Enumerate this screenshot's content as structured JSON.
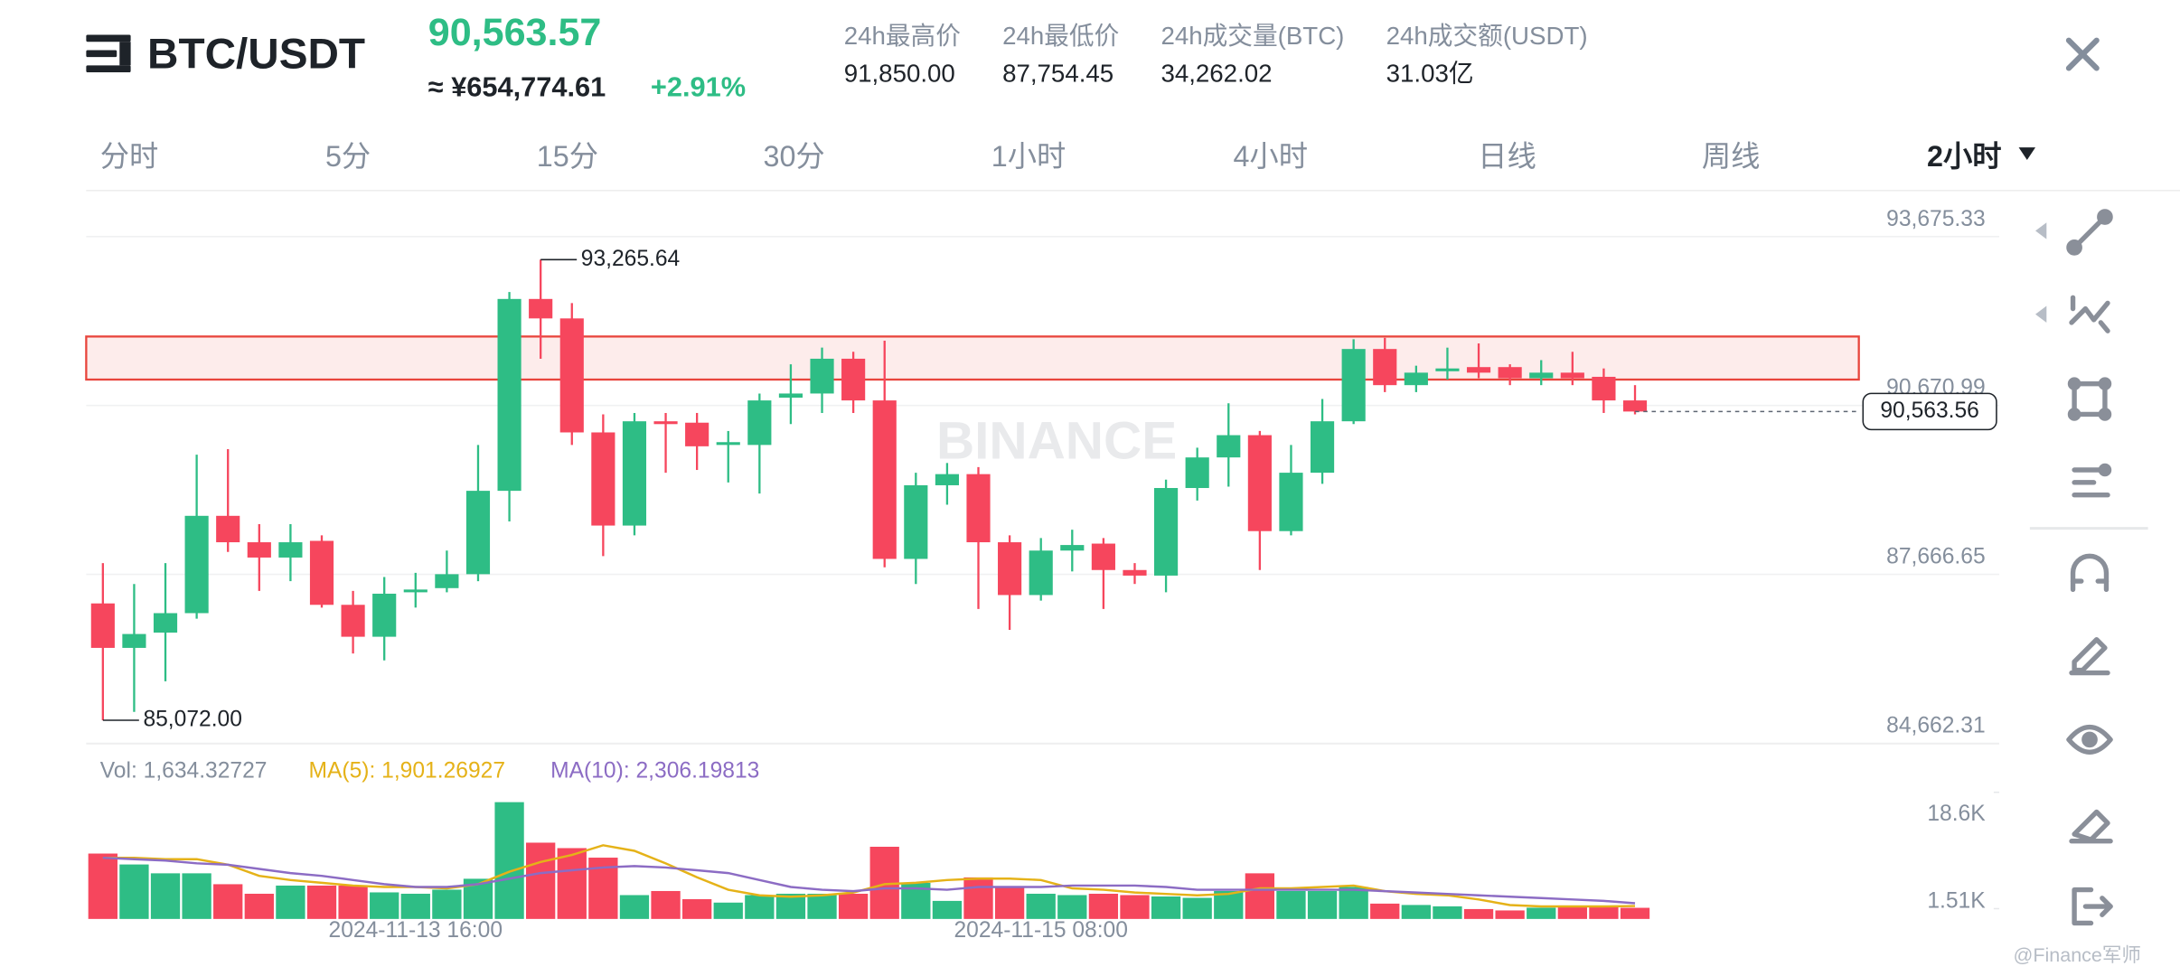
{
  "header": {
    "pair": "BTC/USDT",
    "price": "90,563.57",
    "price_cny": "≈ ¥654,774.61",
    "change": "+2.91%",
    "stats": [
      {
        "label": "24h最高价",
        "value": "91,850.00"
      },
      {
        "label": "24h最低价",
        "value": "87,754.45"
      },
      {
        "label": "24h成交量(BTC)",
        "value": "34,262.02"
      },
      {
        "label": "24h成交额(USDT)",
        "value": "31.03亿"
      }
    ]
  },
  "tabs": [
    "分时",
    "5分",
    "15分",
    "30分",
    "1小时",
    "4小时",
    "日线",
    "周线"
  ],
  "active_tab": "2小时",
  "watermark": "BINANCE",
  "footer": "@Finance军师",
  "chart_data": {
    "type": "candlestick",
    "categories": [
      null,
      null,
      null,
      null,
      null,
      null,
      null,
      null,
      null,
      null,
      "2024-11-13 16:00",
      null,
      null,
      null,
      null,
      null,
      null,
      null,
      null,
      null,
      null,
      null,
      null,
      null,
      null,
      null,
      null,
      null,
      null,
      null,
      "2024-11-15 08:00",
      null,
      null,
      null,
      null,
      null,
      null,
      null,
      null,
      null,
      null,
      null,
      null,
      null,
      null,
      null,
      null,
      null,
      null,
      null
    ],
    "open": [
      87150,
      86359,
      86631,
      86977,
      88708,
      88238,
      87966,
      88263,
      87125,
      86557,
      87348,
      87422,
      87670,
      89153,
      92566,
      92220,
      90192,
      88535,
      90390,
      90365,
      89969,
      89969,
      90810,
      90884,
      91503,
      90761,
      87942,
      89252,
      89450,
      88238,
      87299,
      88090,
      88214,
      87744,
      87645,
      89203,
      89747,
      90143,
      88436,
      89475,
      90390,
      91676,
      91033,
      91280,
      91354,
      91354,
      91156,
      91255,
      91181,
      90761
    ],
    "high": [
      87867,
      87496,
      87867,
      89796,
      89895,
      88560,
      88560,
      88362,
      87373,
      87620,
      87694,
      88090,
      89969,
      92690,
      93265.64,
      92492,
      90513,
      90538,
      90538,
      90538,
      90217,
      90884,
      91404,
      91700,
      91626,
      91824,
      89475,
      89648,
      89574,
      88362,
      88312,
      88461,
      88312,
      87867,
      89351,
      89920,
      90711,
      90217,
      89969,
      90786,
      91849,
      91874,
      91379,
      91700,
      91775,
      91404,
      91478,
      91626,
      91330,
      91033
    ],
    "low": [
      85072,
      85221,
      85765,
      86878,
      88065,
      87373,
      87546,
      87076,
      86260,
      86136,
      87076,
      87348,
      87546,
      88609,
      91503,
      89969,
      87991,
      88362,
      89475,
      89524,
      89302,
      89104,
      90340,
      90538,
      90538,
      87793,
      87496,
      88906,
      87051,
      86680,
      87200,
      87719,
      87051,
      87496,
      87348,
      88980,
      89227,
      87744,
      88362,
      89277,
      90340,
      90909,
      90909,
      91132,
      91156,
      91033,
      91033,
      91033,
      90538,
      90513
    ],
    "close": [
      86359,
      86606,
      86977,
      88708,
      88238,
      87966,
      88238,
      87125,
      86557,
      87323,
      87397,
      87670,
      89153,
      92566,
      92220,
      90192,
      88535,
      90390,
      90340,
      89945,
      90019,
      90761,
      90884,
      91503,
      90761,
      87942,
      89252,
      89450,
      88238,
      87299,
      88090,
      88189,
      87744,
      87645,
      89203,
      89747,
      90143,
      88436,
      89475,
      90390,
      91676,
      91033,
      91255,
      91330,
      91255,
      91156,
      91255,
      91156,
      90761,
      90563.56
    ],
    "up_color": "#2ebd85",
    "down_color": "#f6465d",
    "ylim": [
      84653,
      94421
    ],
    "yticks": [
      {
        "value": 93675.33,
        "label": "93,675.33"
      },
      {
        "value": 90670.99,
        "label": "90,670.99"
      },
      {
        "value": 87666.65,
        "label": "87,666.65"
      },
      {
        "value": 84662.31,
        "label": "84,662.31"
      }
    ],
    "grid": true,
    "zone": [
      91132,
      91898
    ],
    "zone_color": "#e8453c",
    "annotations": [
      {
        "value": 93265.64,
        "label": "93,265.64"
      },
      {
        "value": 85072,
        "label": "85,072.00"
      }
    ],
    "last_price": {
      "value": 90563.56,
      "label": "90,563.56"
    },
    "volume": {
      "label": "Vol: 1,634.32727",
      "values": [
        9600,
        8000,
        6700,
        6700,
        5100,
        3700,
        4900,
        4900,
        4900,
        3900,
        3700,
        4300,
        5900,
        17150,
        11200,
        10400,
        9000,
        3500,
        4100,
        2900,
        2400,
        3500,
        3700,
        3700,
        3700,
        10600,
        5300,
        2650,
        6100,
        4700,
        3700,
        3500,
        3700,
        3500,
        3300,
        3100,
        4100,
        6700,
        4100,
        4100,
        4700,
        2250,
        2050,
        1850,
        1450,
        1250,
        1650,
        1850,
        1850,
        1634.33
      ],
      "ylim": [
        0,
        24700
      ],
      "yticks": [
        {
          "value": 18600,
          "label": "18.6K"
        },
        {
          "value": 1510,
          "label": "1.51K"
        }
      ],
      "series": [
        {
          "name": "MA(5): 1,901.26927",
          "color": "#e5b218",
          "values": [
            8980,
            8980,
            8776,
            8776,
            7959,
            6327,
            5714,
            5306,
            4898,
            4694,
            4694,
            4490,
            5102,
            6939,
            8367,
            9388,
            10816,
            10000,
            8163,
            6122,
            4286,
            3469,
            3265,
            3469,
            3878,
            5102,
            5306,
            5714,
            5918,
            5918,
            5714,
            4490,
            4286,
            3878,
            3673,
            3469,
            3673,
            4490,
            4490,
            4694,
            4898,
            4082,
            3673,
            3469,
            2857,
            2041,
            1837,
            1837,
            1837,
            1901.27
          ]
        },
        {
          "name": "MA(10): 2,306.19813",
          "color": "#8c6cc4",
          "values": [
            8980,
            8776,
            8571,
            8163,
            7959,
            7347,
            6735,
            6327,
            5714,
            5102,
            4694,
            4694,
            5102,
            5918,
            6735,
            7143,
            7551,
            7755,
            7551,
            7143,
            6735,
            5714,
            4694,
            4286,
            4082,
            4490,
            4490,
            4286,
            4694,
            4694,
            4694,
            4898,
            4898,
            4898,
            4694,
            4286,
            4286,
            4286,
            4286,
            4286,
            4286,
            4082,
            3878,
            3673,
            3469,
            3265,
            3061,
            2857,
            2653,
            2306.2
          ]
        }
      ]
    }
  }
}
